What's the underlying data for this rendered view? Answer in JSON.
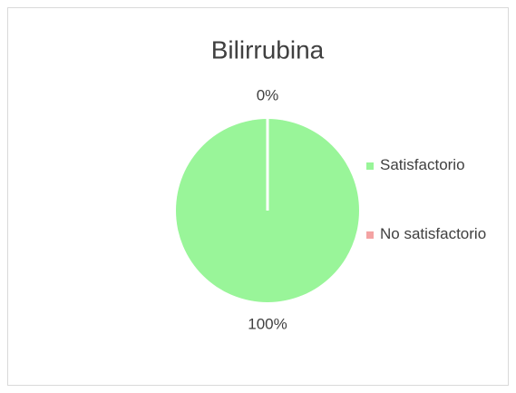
{
  "chart_data": {
    "type": "pie",
    "title": "Bilirrubina",
    "categories": [
      "Satisfactorio",
      "No satisfactorio"
    ],
    "values": [
      100,
      0
    ],
    "value_labels": [
      "100%",
      "0%"
    ],
    "colors": [
      "#99f599",
      "#f4a3a3"
    ],
    "legend": "right"
  }
}
